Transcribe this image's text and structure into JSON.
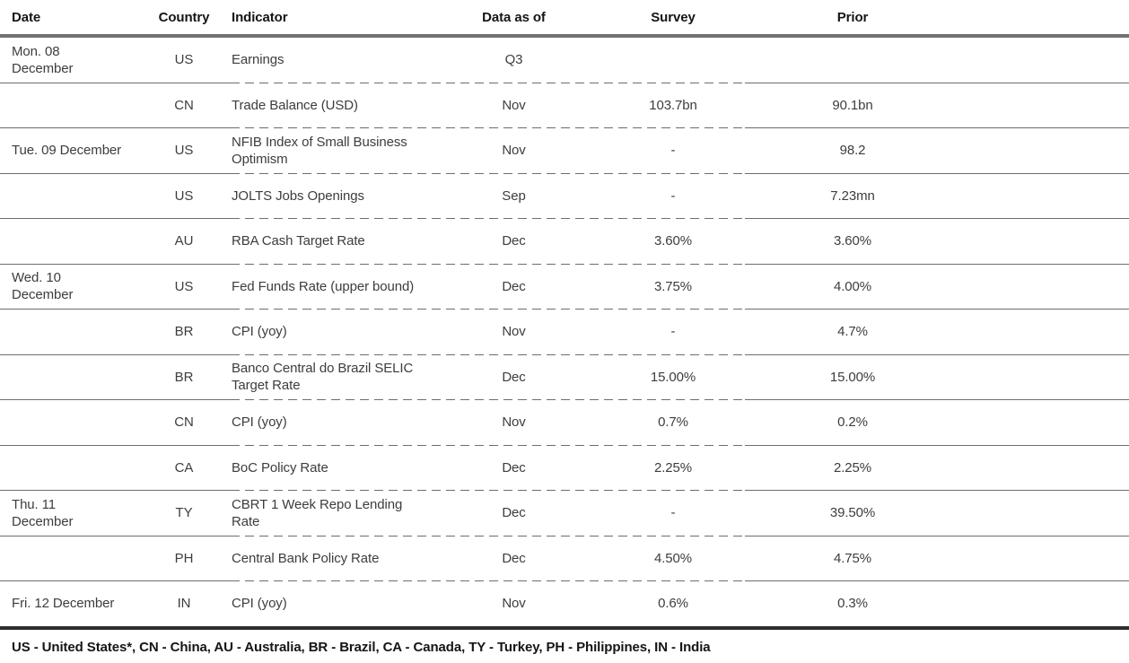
{
  "table": {
    "columns": [
      "Date",
      "Country",
      "Indicator",
      "Data as of",
      "Survey",
      "Prior"
    ],
    "rows": [
      {
        "date": "Mon. 08\nDecember",
        "country": "US",
        "indicator": "Earnings",
        "data_as_of": "Q3",
        "survey": "",
        "prior": ""
      },
      {
        "date": "",
        "country": "CN",
        "indicator": "Trade Balance (USD)",
        "data_as_of": "Nov",
        "survey": "103.7bn",
        "prior": "90.1bn"
      },
      {
        "date": "Tue. 09 December",
        "country": "US",
        "indicator": "NFIB Index of Small Business\nOptimism",
        "data_as_of": "Nov",
        "survey": "-",
        "prior": "98.2"
      },
      {
        "date": "",
        "country": "US",
        "indicator": "JOLTS Jobs Openings",
        "data_as_of": "Sep",
        "survey": "-",
        "prior": "7.23mn"
      },
      {
        "date": "",
        "country": "AU",
        "indicator": "RBA Cash Target Rate",
        "data_as_of": "Dec",
        "survey": "3.60%",
        "prior": "3.60%"
      },
      {
        "date": "Wed. 10\nDecember",
        "country": "US",
        "indicator": "Fed Funds Rate (upper bound)",
        "data_as_of": "Dec",
        "survey": "3.75%",
        "prior": "4.00%"
      },
      {
        "date": "",
        "country": "BR",
        "indicator": "CPI (yoy)",
        "data_as_of": "Nov",
        "survey": "-",
        "prior": "4.7%"
      },
      {
        "date": "",
        "country": "BR",
        "indicator": "Banco Central do Brazil SELIC\nTarget Rate",
        "data_as_of": "Dec",
        "survey": "15.00%",
        "prior": "15.00%"
      },
      {
        "date": "",
        "country": "CN",
        "indicator": "CPI (yoy)",
        "data_as_of": "Nov",
        "survey": "0.7%",
        "prior": "0.2%"
      },
      {
        "date": "",
        "country": "CA",
        "indicator": "BoC Policy Rate",
        "data_as_of": "Dec",
        "survey": "2.25%",
        "prior": "2.25%"
      },
      {
        "date": "Thu. 11\nDecember",
        "country": "TY",
        "indicator": "CBRT 1 Week Repo Lending\nRate",
        "data_as_of": "Dec",
        "survey": "-",
        "prior": "39.50%"
      },
      {
        "date": "",
        "country": "PH",
        "indicator": "Central Bank Policy Rate",
        "data_as_of": "Dec",
        "survey": "4.50%",
        "prior": "4.75%"
      },
      {
        "date": "Fri. 12 December",
        "country": "IN",
        "indicator": "CPI (yoy)",
        "data_as_of": "Nov",
        "survey": "0.6%",
        "prior": "0.3%"
      }
    ]
  },
  "footer": {
    "legend": "US - United States*, CN - China, AU - Australia, BR - Brazil, CA - Canada, TY - Turkey, PH - Philippines, IN - India"
  },
  "colors": {
    "header_rule": "#717175",
    "footer_rule": "#2d2d2d",
    "row_separator": "#6d6d6d",
    "body_text": "#3d3d3d",
    "heading_text": "#151515"
  }
}
